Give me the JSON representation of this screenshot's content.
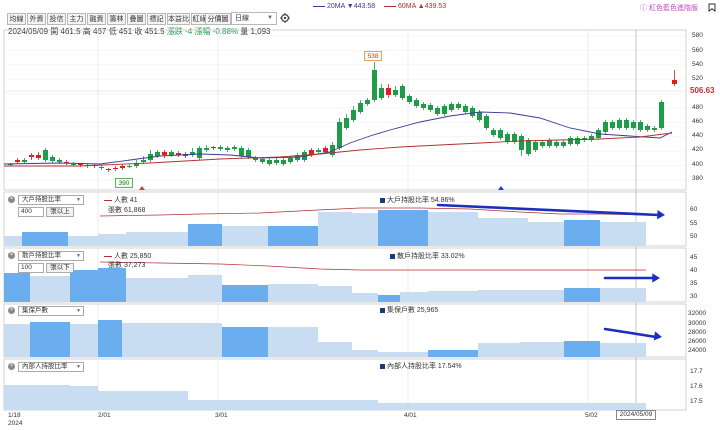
{
  "toolbar": {
    "buttons": [
      "均線",
      "外資",
      "投信",
      "主力",
      "融資",
      "籌林",
      "疊圖",
      "標記",
      "本益比",
      "紅綠燈",
      "分價圖"
    ],
    "period_select": "日線"
  },
  "legend": {
    "ma20": "20MA ▼443.58",
    "ma60": "60MA ▲439.53",
    "color_note": "紅色藍色進階版"
  },
  "info_bar": {
    "date": "2024/05/09",
    "open": "開 461.5",
    "high": "高 467",
    "low": "低 451",
    "close": "收 451.5",
    "change": "漲跌 -4",
    "change_pct": "漲幅 -0.88%",
    "volume": "量 1,093"
  },
  "main_chart": {
    "current_price": "506.63",
    "high_label": "538",
    "low_label": "390",
    "y_ticks": [
      "580",
      "560",
      "540",
      "520",
      "500",
      "480",
      "460",
      "440",
      "420",
      "400",
      "380"
    ]
  },
  "panel1": {
    "combo": "大戶持股比率",
    "input": "400",
    "button": "張以上",
    "people": "人數 41",
    "shares": "張數 61,868",
    "ratio": "大戶持股比率 54.86%",
    "y_ticks": [
      "60",
      "55",
      "50"
    ]
  },
  "panel2": {
    "combo": "散戶持股比率",
    "input": "100",
    "button": "張以下",
    "people": "人數 25,850",
    "shares": "張數 37,273",
    "ratio": "散戶持股比率 33.02%",
    "y_ticks": [
      "45",
      "40",
      "35",
      "30"
    ]
  },
  "panel3": {
    "combo": "集保戶數",
    "value": "集保戶數 25,965",
    "y_ticks": [
      "32000",
      "30000",
      "28000",
      "26000",
      "24000"
    ]
  },
  "panel4": {
    "combo": "內部人持股比率",
    "value": "內部人持股比率 17.54%",
    "y_ticks": [
      "17.7",
      "17.6",
      "17.5"
    ]
  },
  "x_axis": {
    "dates": [
      "1/18",
      "2/01",
      "3/01",
      "4/01",
      "5/02"
    ],
    "year": "2024",
    "cursor_date": "2024/05/09"
  },
  "colors": {
    "up": "#e02020",
    "down": "#1e9c4a",
    "ma20": "#3a3a9a",
    "ma60": "#b03030",
    "bar_light": "#c8dcf2",
    "bar_dark": "#6aaef0",
    "arrow": "#1a2fc0"
  }
}
